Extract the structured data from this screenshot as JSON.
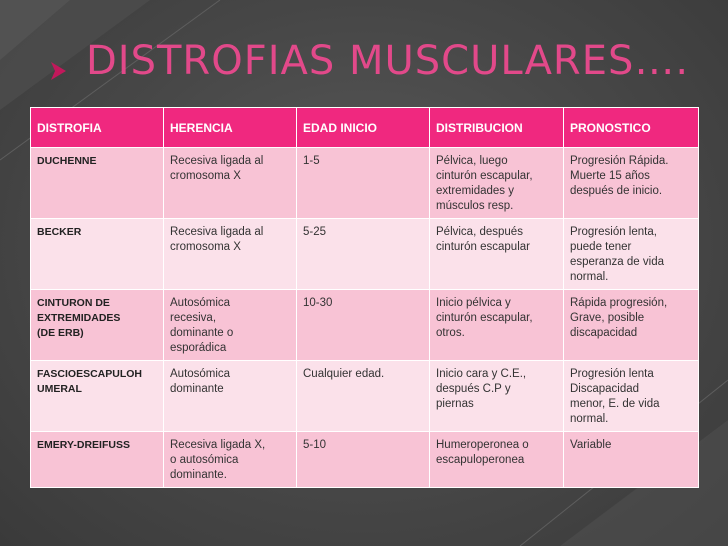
{
  "slide": {
    "title": "DISTROFIAS MUSCULARES….",
    "title_icon": "arrow-right-icon",
    "accent_color": "#f0287f"
  },
  "table": {
    "headers": [
      "DISTROFIA",
      "HERENCIA",
      "EDAD INICIO",
      "DISTRIBUCION",
      "PRONOSTICO"
    ],
    "rows": [
      {
        "distrofia": [
          "DUCHENNE"
        ],
        "herencia": [
          "Recesiva ligada al",
          "cromosoma X"
        ],
        "edad": [
          "1-5"
        ],
        "distribucion": [
          "Pélvica, luego",
          "cinturón escapular,",
          "extremidades y",
          "músculos resp."
        ],
        "pronostico": [
          "Progresión Rápida.",
          "Muerte 15 años",
          "después de inicio."
        ]
      },
      {
        "distrofia": [
          "BECKER"
        ],
        "herencia": [
          "Recesiva ligada al",
          "cromosoma X"
        ],
        "edad": [
          "5-25"
        ],
        "distribucion": [
          "Pélvica, después",
          "cinturón escapular"
        ],
        "pronostico": [
          "Progresión lenta,",
          "puede tener",
          "esperanza de vida",
          "normal."
        ]
      },
      {
        "distrofia": [
          "CINTURON DE",
          "EXTREMIDADES",
          "(DE ERB)"
        ],
        "herencia": [
          "Autosómica",
          "recesiva,",
          "dominante  o",
          "esporádica"
        ],
        "edad": [
          "10-30"
        ],
        "distribucion": [
          "Inicio pélvica y",
          "cinturón escapular,",
          "otros."
        ],
        "pronostico": [
          "Rápida progresión,",
          "Grave, posible",
          "discapacidad"
        ]
      },
      {
        "distrofia": [
          "FASCIOESCAPULOH",
          "UMERAL"
        ],
        "herencia": [
          "Autosómica",
          "dominante"
        ],
        "edad": [
          "Cualquier edad."
        ],
        "distribucion": [
          "Inicio cara y C.E.,",
          "después C.P y",
          "piernas"
        ],
        "pronostico": [
          "Progresión lenta",
          "Discapacidad",
          "menor, E. de vida",
          "normal."
        ]
      },
      {
        "distrofia": [
          "EMERY-DREIFUSS"
        ],
        "herencia": [
          "Recesiva ligada X,",
          "o autosómica",
          "dominante."
        ],
        "edad": [
          "5-10"
        ],
        "distribucion": [
          "Humeroperonea o",
          "escapuloperonea"
        ],
        "pronostico": [
          "Variable"
        ]
      }
    ]
  }
}
